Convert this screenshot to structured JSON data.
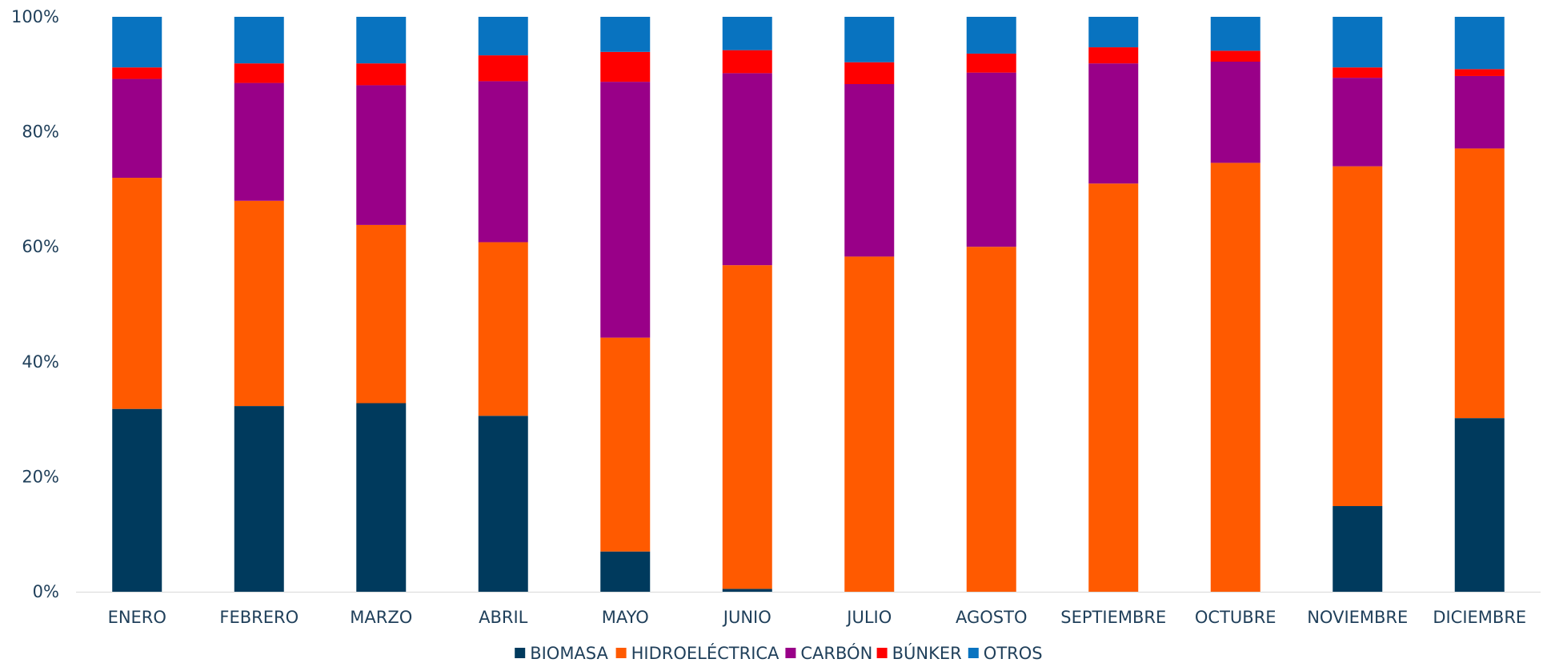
{
  "chart_data": {
    "type": "bar",
    "stacked": true,
    "percent": true,
    "title": "",
    "xlabel": "",
    "ylabel": "",
    "ylim": [
      0,
      100
    ],
    "yticks": [
      "0%",
      "20%",
      "40%",
      "60%",
      "80%",
      "100%"
    ],
    "grid": false,
    "legend": "bottom",
    "categories": [
      "ENERO",
      "FEBRERO",
      "MARZO",
      "ABRIL",
      "MAYO",
      "JUNIO",
      "JULIO",
      "AGOSTO",
      "SEPTIEMBRE",
      "OCTUBRE",
      "NOVIEMBRE",
      "DICIEMBRE"
    ],
    "series": [
      {
        "name": "BIOMASA",
        "color": "#003a5d",
        "values": [
          31.8,
          32.3,
          32.8,
          30.6,
          7.0,
          0.5,
          0,
          0,
          0,
          0,
          14.9,
          30.2
        ]
      },
      {
        "name": "HIDROELÉCTRICA",
        "color": "#ff5a00",
        "values": [
          40.2,
          35.7,
          31.0,
          30.2,
          37.2,
          56.3,
          58.3,
          60.0,
          71.0,
          74.6,
          59.1,
          46.9
        ]
      },
      {
        "name": "CARBÓN",
        "color": "#990088",
        "values": [
          17.2,
          20.5,
          24.3,
          28.0,
          44.5,
          33.4,
          30.0,
          30.3,
          20.9,
          17.6,
          15.4,
          12.6
        ]
      },
      {
        "name": "BÚNKER",
        "color": "#ff0000",
        "values": [
          2.0,
          3.4,
          3.8,
          4.5,
          5.2,
          4.0,
          3.8,
          3.3,
          2.8,
          1.9,
          1.8,
          1.2
        ]
      },
      {
        "name": "OTROS",
        "color": "#0873c0",
        "values": [
          8.8,
          8.1,
          8.1,
          6.7,
          6.1,
          5.8,
          7.9,
          6.4,
          5.3,
          5.9,
          8.8,
          9.1
        ]
      }
    ]
  }
}
